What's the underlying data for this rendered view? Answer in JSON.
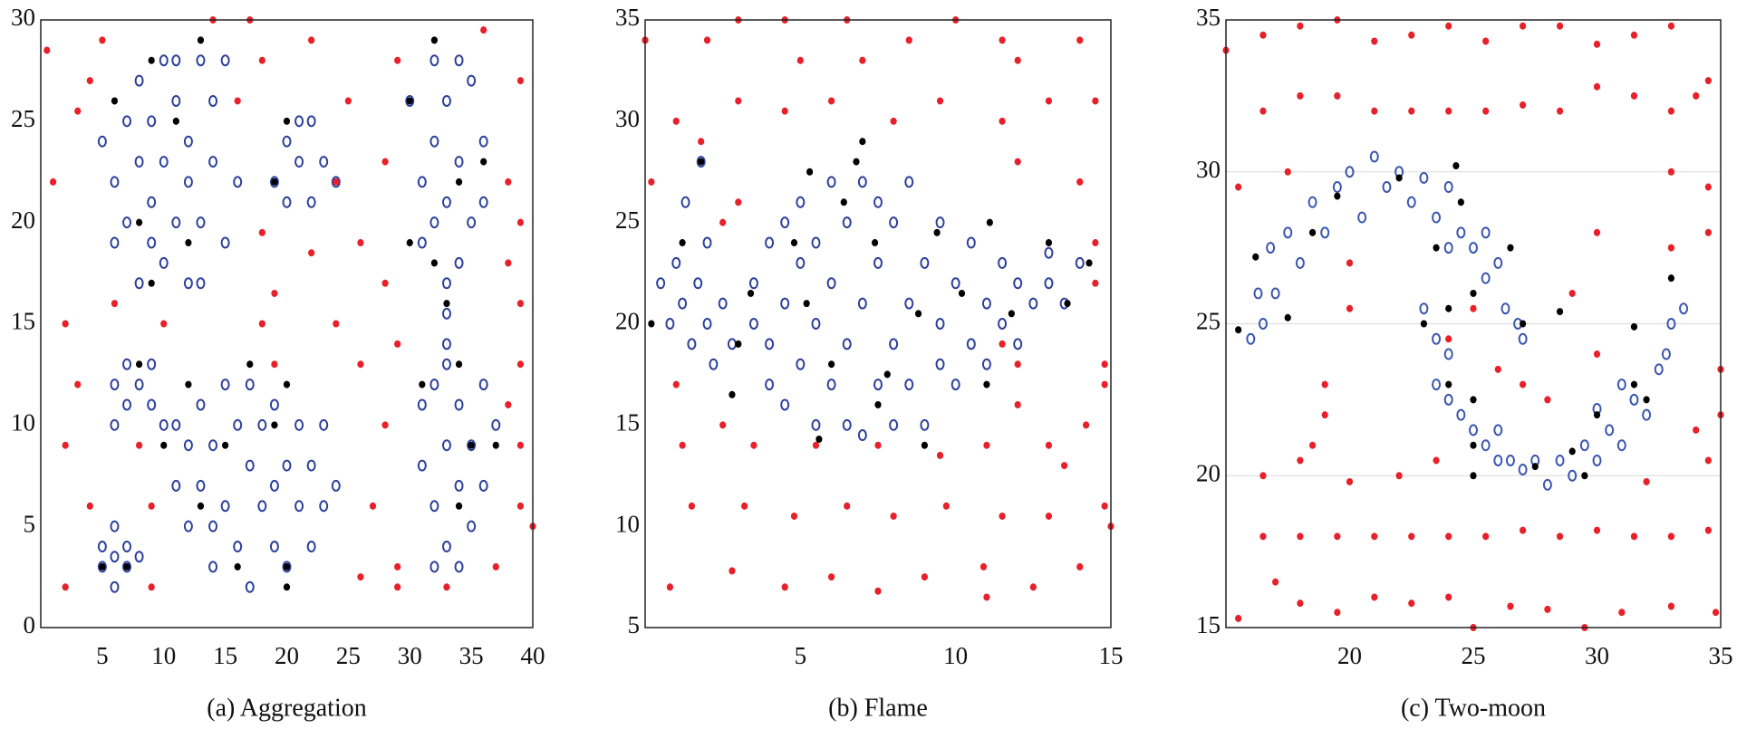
{
  "chart_data": [
    {
      "type": "scatter",
      "title": "(a) Aggregation",
      "xlim": [
        0,
        40
      ],
      "xticks": [
        5,
        10,
        15,
        20,
        25,
        30,
        35,
        40
      ],
      "ylim": [
        0,
        30
      ],
      "yticks": [
        0,
        5,
        10,
        15,
        20,
        25,
        30
      ],
      "grid": false,
      "series": [
        {
          "color": "#2b3f9c",
          "marker": "open",
          "x": [
            5,
            6,
            7,
            7,
            8,
            8,
            9,
            9,
            10,
            10,
            10,
            11,
            11,
            12,
            12,
            12,
            13,
            13,
            14,
            14,
            15,
            15,
            16,
            6,
            9,
            13,
            11,
            8,
            19,
            20,
            20,
            21,
            22,
            22,
            23,
            24,
            21,
            30,
            31,
            31,
            32,
            32,
            33,
            33,
            34,
            34,
            35,
            35,
            36,
            36,
            32,
            34,
            33,
            33,
            33,
            33,
            31,
            31,
            32,
            32,
            33,
            33,
            34,
            34,
            35,
            35,
            36,
            36,
            37,
            32,
            34,
            6,
            6,
            7,
            7,
            8,
            9,
            9,
            10,
            11,
            11,
            12,
            12,
            13,
            13,
            14,
            14,
            15,
            15,
            16,
            16,
            17,
            17,
            17,
            18,
            18,
            19,
            19,
            20,
            20,
            21,
            21,
            22,
            22,
            23,
            23,
            24,
            14,
            19,
            5,
            5,
            6,
            6,
            6,
            7,
            7,
            8
          ],
          "y": [
            24,
            22,
            25,
            20,
            23,
            27,
            21,
            25,
            18,
            23,
            28,
            20,
            26,
            22,
            17,
            24,
            28,
            20,
            23,
            26,
            19,
            28,
            22,
            19,
            19,
            17,
            28,
            17,
            22,
            24,
            21,
            23,
            25,
            21,
            23,
            22,
            25,
            26,
            22,
            19,
            28,
            24,
            21,
            26,
            18,
            23,
            27,
            20,
            24,
            21,
            20,
            28,
            17,
            15.5,
            14,
            13,
            11,
            8,
            12,
            6,
            9,
            4,
            11,
            7,
            5,
            9,
            12,
            7,
            10,
            3,
            3,
            12,
            10,
            13,
            11,
            12,
            11,
            13,
            10,
            10,
            7,
            9,
            5,
            11,
            7,
            3,
            9,
            12,
            6,
            10,
            4,
            8,
            12,
            2,
            6,
            10,
            4,
            11,
            8,
            3,
            6,
            10,
            4,
            8,
            6,
            10,
            7,
            5,
            7,
            3,
            4,
            2,
            3.5,
            5,
            3,
            4,
            3.5
          ]
        },
        {
          "color": "#e8202a",
          "marker": "dot",
          "x": [
            0.5,
            3,
            1,
            4,
            5,
            14,
            17,
            22,
            18,
            16,
            25,
            24,
            18,
            22,
            26,
            28,
            29,
            36,
            39,
            38,
            39,
            38,
            39,
            39,
            38,
            39,
            39,
            40,
            37,
            33,
            29,
            29,
            27,
            26,
            28,
            29,
            28,
            24,
            19,
            19,
            18,
            10,
            6,
            2,
            3,
            2,
            4,
            2,
            9,
            9,
            8,
            26
          ],
          "y": [
            28.5,
            25.5,
            22,
            27,
            29,
            30,
            30,
            29,
            28,
            26,
            26,
            22,
            19.5,
            18.5,
            19,
            23,
            28,
            29.5,
            27,
            22,
            20,
            18,
            16,
            13,
            11,
            9,
            6,
            5,
            3,
            2,
            3,
            2,
            6,
            13,
            10,
            14,
            17,
            15,
            16.5,
            13,
            15,
            15,
            16,
            15,
            12,
            9,
            6,
            2,
            2,
            6,
            9,
            2.5
          ]
        },
        {
          "color": "#000000",
          "marker": "dot",
          "x": [
            9,
            13,
            6,
            11,
            8,
            12,
            9,
            20,
            19,
            32,
            30,
            34,
            36,
            30,
            32,
            33,
            31,
            34,
            35,
            34,
            37,
            8,
            12,
            17,
            20,
            10,
            15,
            19,
            20,
            13,
            16,
            20,
            5,
            7
          ],
          "y": [
            28,
            29,
            26,
            25,
            20,
            19,
            17,
            25,
            22,
            29,
            26,
            22,
            23,
            19,
            18,
            16,
            12,
            13,
            9,
            6,
            9,
            13,
            12,
            13,
            12,
            9,
            9,
            10,
            3,
            6,
            3,
            2,
            3,
            3
          ]
        }
      ]
    },
    {
      "type": "scatter",
      "title": "(b) Flame",
      "xlim": [
        0,
        15
      ],
      "xticks": [
        5,
        10,
        15
      ],
      "ylim": [
        5,
        35
      ],
      "yticks": [
        5,
        10,
        15,
        20,
        25,
        30,
        35
      ],
      "grid": false,
      "series": [
        {
          "color": "#2b3f9c",
          "marker": "open",
          "x": [
            0.5,
            0.8,
            1,
            1.2,
            1.5,
            1.7,
            2,
            2.2,
            2.5,
            2.8,
            2,
            1.3,
            1.8,
            3.5,
            3.5,
            4,
            4,
            4,
            4.5,
            4.5,
            4.5,
            5,
            5,
            5,
            5.5,
            5.5,
            5.5,
            6,
            6,
            6,
            6.5,
            6.5,
            6.5,
            7,
            7,
            7,
            7.5,
            7.5,
            7.5,
            8,
            8,
            8,
            8.5,
            8.5,
            8.5,
            9,
            9,
            9.5,
            9.5,
            9.5,
            10,
            10,
            10.5,
            10.5,
            11,
            11,
            11.5,
            11.5,
            12,
            12,
            12.5,
            13,
            13,
            13.5,
            14
          ],
          "y": [
            22,
            20,
            23,
            21,
            19,
            22,
            20,
            18,
            21,
            19,
            24,
            26,
            28,
            20,
            22,
            17,
            19,
            24,
            16,
            21,
            25,
            18,
            23,
            26,
            15,
            20,
            24,
            17,
            22,
            27,
            15,
            19,
            25,
            14.5,
            21,
            27,
            17,
            23,
            26,
            15,
            19,
            25,
            17,
            21,
            27,
            15,
            23,
            18,
            20,
            25,
            17,
            22,
            19,
            24,
            18,
            21,
            20,
            23,
            19,
            22,
            21,
            22,
            23.5,
            21,
            23
          ]
        },
        {
          "color": "#e8202a",
          "marker": "dot",
          "x": [
            0,
            1,
            2,
            3,
            4.5,
            5,
            6.5,
            7,
            8.5,
            10,
            11.5,
            12,
            14,
            14.5,
            13,
            11.5,
            9.5,
            8,
            6,
            4.5,
            3,
            1.8,
            0.2,
            3,
            2.5,
            12,
            14,
            14.5,
            14.5,
            14.8,
            14.8,
            14.2,
            13.5,
            14.8,
            15,
            14,
            12.5,
            11,
            10.9,
            9,
            7.5,
            6,
            4.5,
            2.8,
            0.8,
            1.5,
            3.2,
            4.8,
            6.5,
            8,
            9.7,
            11.5,
            13,
            13,
            11,
            9.5,
            7.5,
            5.5,
            3.5,
            1.2,
            2.5,
            1,
            12,
            12,
            11.5
          ],
          "y": [
            34,
            30,
            34,
            35,
            35,
            33,
            35,
            33,
            34,
            35,
            34,
            33,
            34,
            31,
            31,
            30,
            31,
            30,
            31,
            30.5,
            31,
            29,
            27,
            26,
            25,
            28,
            27,
            24,
            22,
            18,
            17,
            15,
            13,
            11,
            10,
            8,
            7,
            6.5,
            8,
            7.5,
            6.8,
            7.5,
            7,
            7.8,
            7,
            11,
            11,
            10.5,
            11,
            10.5,
            11,
            10.5,
            10.5,
            14,
            14,
            13.5,
            14,
            14,
            14,
            14,
            15,
            17,
            16,
            18,
            19
          ]
        },
        {
          "color": "#000000",
          "marker": "dot",
          "x": [
            1.8,
            1.2,
            0.2,
            3,
            3.4,
            2.8,
            4.8,
            5.3,
            5.2,
            6,
            5.6,
            6.4,
            6.8,
            7,
            7.4,
            7.5,
            7.8,
            8.8,
            9,
            9.4,
            10.2,
            11,
            11.1,
            11.8,
            13,
            13.6,
            14.3
          ],
          "y": [
            28,
            24,
            20,
            19,
            21.5,
            16.5,
            24,
            27.5,
            21,
            18,
            14.3,
            26,
            28,
            29,
            24,
            16,
            17.5,
            20.5,
            14,
            24.5,
            21.5,
            17,
            25,
            20.5,
            24,
            21,
            23
          ]
        }
      ]
    },
    {
      "type": "scatter",
      "title": "(c) Two-moon",
      "xlim": [
        15,
        35
      ],
      "xticks": [
        20,
        25,
        30,
        35
      ],
      "ylim": [
        15,
        35
      ],
      "yticks": [
        15,
        20,
        25,
        30,
        35
      ],
      "grid": true,
      "series": [
        {
          "color": "#3a55b0",
          "marker": "open",
          "x": [
            16,
            16.3,
            16.8,
            17.5,
            18,
            18.5,
            19,
            19.5,
            20,
            20.5,
            21,
            21.5,
            22,
            22.5,
            23,
            23.5,
            24,
            24.5,
            25,
            25.5,
            26,
            26.3,
            26.8,
            27,
            16.5,
            17,
            25.5,
            24,
            23,
            23.5,
            23.5,
            24,
            24.5,
            25,
            25.5,
            26,
            26.5,
            27,
            27.5,
            28,
            28.5,
            29,
            29.5,
            30,
            30.5,
            31,
            31.5,
            32,
            32.5,
            32.8,
            33,
            33.5,
            24,
            31,
            30,
            26
          ],
          "y": [
            24.5,
            26,
            27.5,
            28,
            27,
            29,
            28,
            29.5,
            30,
            28.5,
            30.5,
            29.5,
            30,
            29,
            29.8,
            28.5,
            29.5,
            28,
            27.5,
            26.5,
            27,
            25.5,
            25,
            24.5,
            25,
            26,
            28,
            27.5,
            25.5,
            24.5,
            23,
            22.5,
            22,
            21.5,
            21,
            21.5,
            20.5,
            20.2,
            20.5,
            19.7,
            20.5,
            20,
            21,
            20.5,
            21.5,
            21,
            22.5,
            22,
            23.5,
            24,
            25,
            25.5,
            24,
            23,
            22.2,
            20.5
          ]
        },
        {
          "color": "#e8202a",
          "marker": "dot",
          "x": [
            15,
            16.5,
            18,
            19.5,
            21,
            22.5,
            24,
            25.5,
            27,
            28.5,
            30,
            31.5,
            33,
            34,
            34.5,
            33,
            31.5,
            30,
            28.5,
            27,
            25.5,
            24,
            22.5,
            21,
            19.5,
            18,
            16.5,
            15.5,
            17.5,
            33,
            34.5,
            34.5,
            33,
            30,
            29,
            30,
            28,
            27,
            26,
            25,
            20,
            20,
            19,
            19,
            18,
            16.5,
            20,
            22,
            23.5,
            32,
            34.5,
            35,
            35,
            34,
            16.5,
            18,
            19.5,
            21,
            22.5,
            24,
            25.5,
            27,
            28.5,
            30,
            31.5,
            33,
            34.5,
            15.5,
            17,
            18,
            19.5,
            21,
            22.5,
            24,
            25,
            26.5,
            28,
            29.5,
            31,
            33,
            34.8,
            18.5,
            24
          ],
          "y": [
            34,
            34.5,
            34.8,
            35,
            34.3,
            34.5,
            34.8,
            34.3,
            34.8,
            34.8,
            34.2,
            34.5,
            34.8,
            32.5,
            33,
            32,
            32.5,
            32.8,
            32,
            32.2,
            32,
            32,
            32,
            32,
            32.5,
            32.5,
            32,
            29.5,
            30,
            30,
            29.5,
            28,
            27.5,
            28,
            26,
            24,
            22.5,
            23,
            23.5,
            25.5,
            27,
            25.5,
            23,
            22,
            20.5,
            20,
            19.8,
            20,
            20.5,
            19.8,
            20.5,
            22,
            23.5,
            21.5,
            18,
            18,
            18,
            18,
            18,
            18,
            18,
            18.2,
            18,
            18.2,
            18,
            18,
            18.2,
            15.3,
            16.5,
            15.8,
            15.5,
            16,
            15.8,
            16,
            15,
            15.7,
            15.6,
            15,
            15.5,
            15.7,
            15.5,
            21,
            24.5
          ]
        },
        {
          "color": "#000000",
          "marker": "dot",
          "x": [
            15.5,
            16.2,
            17.5,
            18.5,
            19.5,
            22,
            23.5,
            24.3,
            24.5,
            25,
            26.5,
            27,
            28.5,
            23,
            24,
            24,
            25,
            25,
            27.5,
            29.5,
            30,
            31.5,
            31.5,
            32,
            33,
            25,
            29
          ],
          "y": [
            24.8,
            27.2,
            25.2,
            28,
            29.2,
            29.8,
            27.5,
            30.2,
            29,
            26,
            27.5,
            25,
            25.4,
            25,
            25.5,
            23,
            22.5,
            21,
            20.3,
            20,
            22,
            23,
            24.9,
            22.5,
            26.5,
            20,
            20.8
          ]
        }
      ]
    }
  ]
}
